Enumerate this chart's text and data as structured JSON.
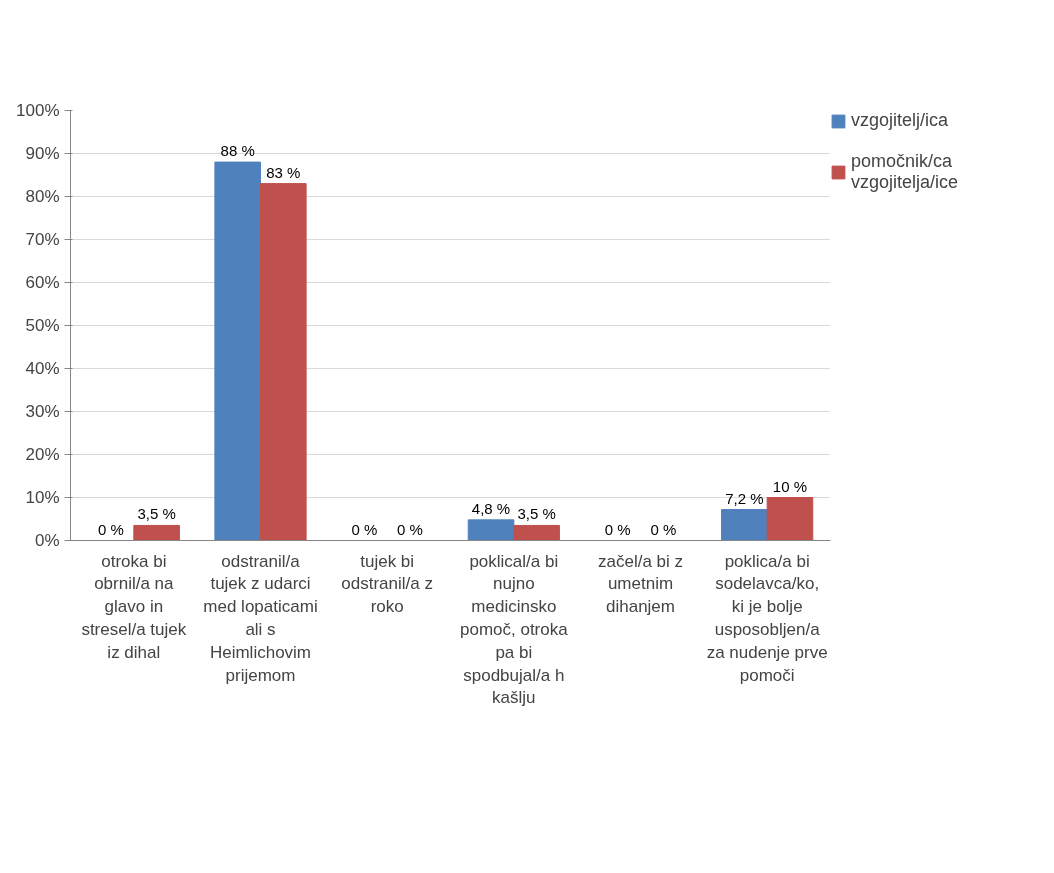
{
  "chart_data": {
    "type": "bar",
    "categories": [
      "otroka bi obrnil/a na glavo in stresel/a tujek iz dihal",
      "odstranil/a tujek z udarci med lopaticami ali s Heimlichovim prijemom",
      "tujek bi odstranil/a z roko",
      "poklical/a bi nujno medicinsko pomoč, otroka pa bi spodbujal/a h kašlju",
      "začel/a bi z umetnim dihanjem",
      "poklica/a bi sodelavca/ko, ki je bolje usposobljen/a za nudenje prve pomoči"
    ],
    "series": [
      {
        "name": "vzgojitelj/ica",
        "color": "#4f81bd",
        "values": [
          0,
          88,
          0,
          4.8,
          0,
          7.2
        ],
        "value_labels": [
          "0 %",
          "88 %",
          "0 %",
          "4,8 %",
          "0 %",
          "7,2 %"
        ]
      },
      {
        "name": "pomočnik/ca vzgojitelja/ice",
        "color": "#c0504d",
        "values": [
          3.5,
          83,
          0,
          3.5,
          0,
          10
        ],
        "value_labels": [
          "3,5 %",
          "83 %",
          "0 %",
          "3,5 %",
          "0 %",
          "10 %"
        ]
      }
    ],
    "ylim": [
      0,
      100
    ],
    "yticks": [
      {
        "value": 0,
        "label": "0%"
      },
      {
        "value": 10,
        "label": "10%"
      },
      {
        "value": 20,
        "label": "20%"
      },
      {
        "value": 30,
        "label": "30%"
      },
      {
        "value": 40,
        "label": "40%"
      },
      {
        "value": 50,
        "label": "50%"
      },
      {
        "value": 60,
        "label": "60%"
      },
      {
        "value": 70,
        "label": "70%"
      },
      {
        "value": 80,
        "label": "80%"
      },
      {
        "value": 90,
        "label": "90%"
      },
      {
        "value": 100,
        "label": "100%"
      }
    ],
    "grid": "y",
    "legend": "top right"
  }
}
